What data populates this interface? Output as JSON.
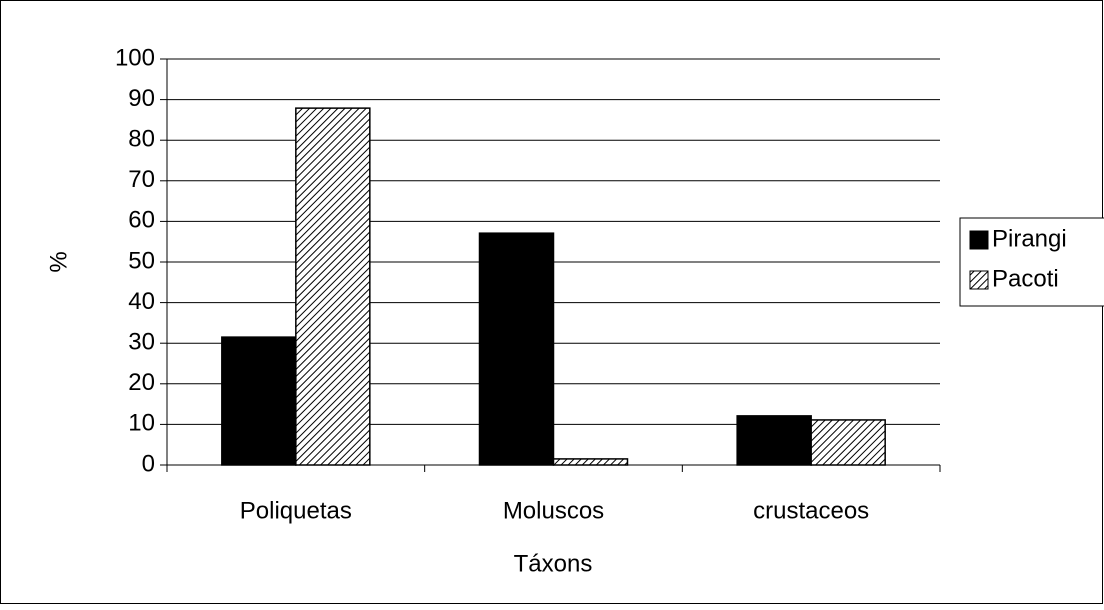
{
  "chart_data": {
    "type": "bar",
    "x_label": "Táxons",
    "y_label": "%",
    "categories": [
      "Poliquetas",
      "Moluscos",
      "crustaceos"
    ],
    "series": [
      {
        "name": "Pirangi",
        "color": "#000000",
        "pattern": "solid",
        "values": [
          31.5,
          57.1,
          12.1
        ]
      },
      {
        "name": "Pacoti",
        "color": "#000000",
        "pattern": "hatch",
        "values": [
          87.9,
          1.5,
          11.1
        ]
      }
    ],
    "ylim": [
      0,
      100
    ],
    "yticks": [
      0,
      10,
      20,
      30,
      40,
      50,
      60,
      70,
      80,
      90,
      100
    ],
    "grid": true,
    "legend": "right"
  }
}
